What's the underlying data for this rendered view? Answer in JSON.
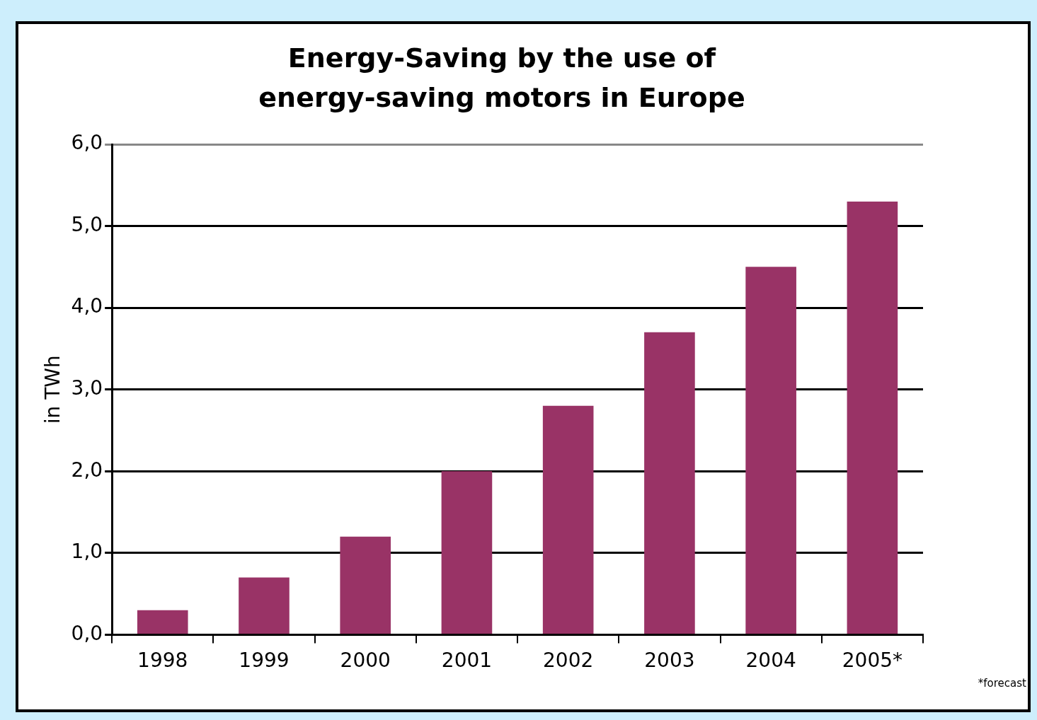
{
  "chart_data": {
    "type": "bar",
    "title": "Energy-Saving by the use of energy-saving motors in Europe",
    "ylabel": "in TWh",
    "categories": [
      "1998",
      "1999",
      "2000",
      "2001",
      "2002",
      "2003",
      "2004",
      "2005*"
    ],
    "values": [
      0.3,
      0.7,
      1.2,
      2.0,
      2.8,
      3.7,
      4.5,
      5.3
    ],
    "color": "#993366",
    "ylim": [
      0,
      6
    ],
    "yticks": [
      {
        "value": 0,
        "label": "0,0"
      },
      {
        "value": 1,
        "label": "1,0"
      },
      {
        "value": 2,
        "label": "2,0"
      },
      {
        "value": 3,
        "label": "3,0"
      },
      {
        "value": 4,
        "label": "4,0"
      },
      {
        "value": 5,
        "label": "5,0"
      },
      {
        "value": 6,
        "label": "6,0"
      }
    ],
    "grid": "y",
    "legend": false,
    "annotations": [
      "*forecast"
    ]
  }
}
